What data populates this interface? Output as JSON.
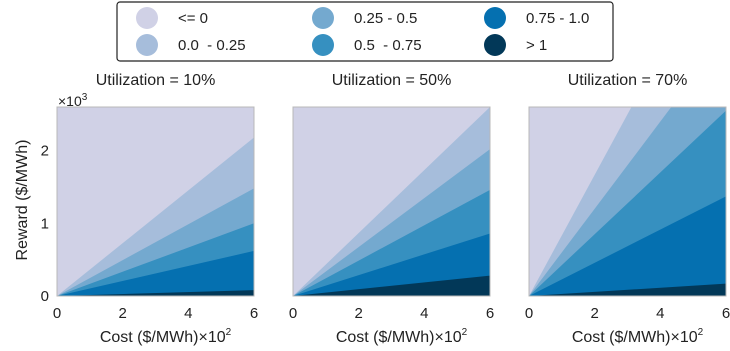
{
  "chart_data": {
    "type": "area",
    "legend": {
      "placement": "top-center",
      "entries": [
        {
          "label": "<= 0",
          "color": "#d0d1e6"
        },
        {
          "label": "0.0  - 0.25",
          "color": "#a6bddb"
        },
        {
          "label": "0.25 - 0.5",
          "color": "#74a9cf"
        },
        {
          "label": "0.5  - 0.75",
          "color": "#3690c0"
        },
        {
          "label": "0.75 - 1.0",
          "color": "#0570b0"
        },
        {
          "label": "> 1",
          "color": "#023858"
        }
      ]
    },
    "xlabel": "Cost ($/MWh)",
    "xscale_label": "×10",
    "xscale_exp": "2",
    "ylabel": "Reward ($/MWh)",
    "yscale_label": "×10",
    "yscale_exp": "3",
    "xlim": [
      0,
      6
    ],
    "ylim": [
      0,
      2.6
    ],
    "xticks": [
      0,
      2,
      4,
      6
    ],
    "yticks": [
      0,
      1,
      2
    ],
    "grid": false,
    "boundary_note": "band boundaries are straight lines from the origin; values give the reward (x10^3) at cost = 6 (x10^2), lowest to highest",
    "panels": [
      {
        "title": "Utilization = 10%",
        "boundaries_at_x6": [
          0.08,
          0.62,
          1.0,
          1.48,
          2.18
        ]
      },
      {
        "title": "Utilization = 50%",
        "boundaries_at_x6": [
          0.28,
          0.86,
          1.46,
          2.02,
          2.6
        ]
      },
      {
        "title": "Utilization = 70%",
        "boundaries_at_x6": [
          0.17,
          1.37,
          2.55,
          3.6,
          5.0
        ]
      }
    ]
  }
}
